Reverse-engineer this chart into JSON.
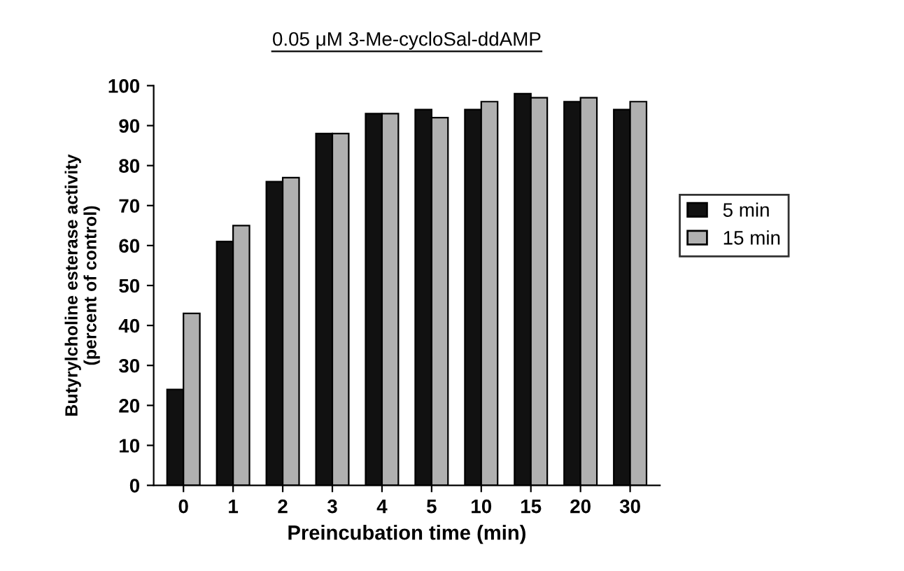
{
  "chart_data": {
    "type": "bar",
    "title": "0.05 μM 3-Me-cycloSal-ddAMP",
    "xlabel": "Preincubation time (min)",
    "ylabel": "Butyrylcholine esterase activity\n(percent of control)",
    "categories": [
      "0",
      "1",
      "2",
      "3",
      "4",
      "5",
      "10",
      "15",
      "20",
      "30"
    ],
    "series": [
      {
        "name": "5 min",
        "color": "#111111",
        "values": [
          24,
          61,
          76,
          88,
          93,
          94,
          94,
          98,
          96,
          94
        ]
      },
      {
        "name": "15 min",
        "color": "#b0b0b0",
        "values": [
          43,
          65,
          77,
          88,
          93,
          92,
          96,
          97,
          97,
          96
        ]
      }
    ],
    "ylim": [
      0,
      100
    ],
    "yticks": [
      0,
      10,
      20,
      30,
      40,
      50,
      60,
      70,
      80,
      90,
      100
    ],
    "grid": false,
    "legend": "right"
  }
}
